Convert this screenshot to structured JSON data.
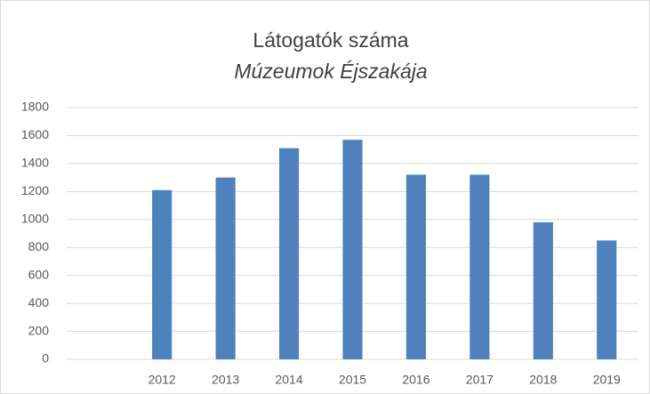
{
  "chart_data": {
    "type": "bar",
    "title": "Látogatók száma",
    "subtitle": "Múzeumok Éjszakája",
    "categories": [
      null,
      "2012",
      "2013",
      "2014",
      "2015",
      "2016",
      "2017",
      "2018",
      "2019"
    ],
    "values": [
      null,
      1210,
      1300,
      1510,
      1570,
      1320,
      1320,
      980,
      850
    ],
    "color": "#4f81bd",
    "ylim": [
      0,
      1800
    ],
    "yticks": [
      0,
      200,
      400,
      600,
      800,
      1000,
      1200,
      1400,
      1600,
      1800
    ],
    "grid": true
  }
}
